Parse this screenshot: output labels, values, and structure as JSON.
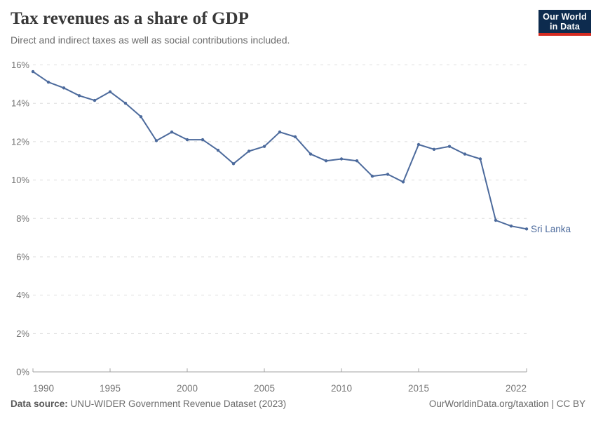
{
  "header": {
    "title": "Tax revenues as a share of GDP",
    "subtitle": "Direct and indirect taxes as well as social contributions included.",
    "logo": {
      "line1": "Our World",
      "line2": "in Data"
    }
  },
  "footer": {
    "datasource_label": "Data source:",
    "datasource_value": " UNU-WIDER Government Revenue Dataset (2023)",
    "link": "OurWorldinData.org/taxation | CC BY"
  },
  "colors": {
    "series_line": "#4C6A9C",
    "grid": "#DDDDDD",
    "axis": "#A3A3A3",
    "tick_text": "#757575",
    "logo_bg": "#0D2B4E",
    "logo_stripe": "#D42B21"
  },
  "chart_data": {
    "type": "line",
    "title": "Tax revenues as a share of GDP",
    "subtitle": "Direct and indirect taxes as well as social contributions included.",
    "xlabel": "",
    "ylabel": "",
    "xlim": [
      1990,
      2022
    ],
    "ylim": [
      0,
      16
    ],
    "y_ticks": [
      0,
      2,
      4,
      6,
      8,
      10,
      12,
      14,
      16
    ],
    "y_tick_suffix": "%",
    "x_ticks": [
      1990,
      1995,
      2000,
      2005,
      2010,
      2015,
      2022
    ],
    "grid": "horizontal-dashed",
    "legend": "end-of-line-label",
    "series": [
      {
        "name": "Sri Lanka",
        "x": [
          1990,
          1991,
          1992,
          1993,
          1994,
          1995,
          1996,
          1997,
          1998,
          1999,
          2000,
          2001,
          2002,
          2003,
          2004,
          2005,
          2006,
          2007,
          2008,
          2009,
          2010,
          2011,
          2012,
          2013,
          2014,
          2015,
          2016,
          2017,
          2018,
          2019,
          2020,
          2021,
          2022
        ],
        "values": [
          15.65,
          15.1,
          14.8,
          14.4,
          14.15,
          14.6,
          14.0,
          13.3,
          12.05,
          12.5,
          12.1,
          12.1,
          11.55,
          10.85,
          11.5,
          11.75,
          12.5,
          12.25,
          11.35,
          11.0,
          11.1,
          11.0,
          10.2,
          10.3,
          9.9,
          11.85,
          11.6,
          11.75,
          11.35,
          11.1,
          7.9,
          7.6,
          7.45
        ]
      }
    ]
  }
}
